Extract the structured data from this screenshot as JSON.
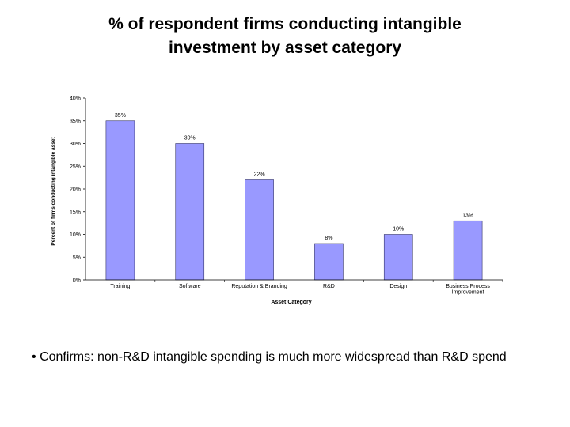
{
  "slide": {
    "title_line1": "% of respondent firms conducting intangible",
    "title_line2": "investment by asset category",
    "bullet_marker": "•",
    "bullet_text": "Confirms: non-R&D intangible spending is much more widespread than R&D spend"
  },
  "chart_data": {
    "type": "bar",
    "categories": [
      "Training",
      "Software",
      "Reputation & Branding",
      "R&D",
      "Design",
      "Business Process Improvement"
    ],
    "category_lines": [
      [
        "Training"
      ],
      [
        "Software"
      ],
      [
        "Reputation & Branding"
      ],
      [
        "R&D"
      ],
      [
        "Design"
      ],
      [
        "Business Process",
        "Improvement"
      ]
    ],
    "values": [
      35,
      30,
      22,
      8,
      10,
      13
    ],
    "data_labels": [
      "35%",
      "30%",
      "22%",
      "8%",
      "10%",
      "13%"
    ],
    "xlabel": "Asset Category",
    "ylabel": "Percent of firms conducting intangible asset",
    "ylim": [
      0,
      40
    ],
    "yticks": [
      0,
      5,
      10,
      15,
      20,
      25,
      30,
      35,
      40
    ],
    "ytick_labels": [
      "0%",
      "5%",
      "10%",
      "15%",
      "20%",
      "25%",
      "30%",
      "35%",
      "40%"
    ],
    "grid": false,
    "bar_color": "#9999ff",
    "bar_stroke": "#333366"
  }
}
